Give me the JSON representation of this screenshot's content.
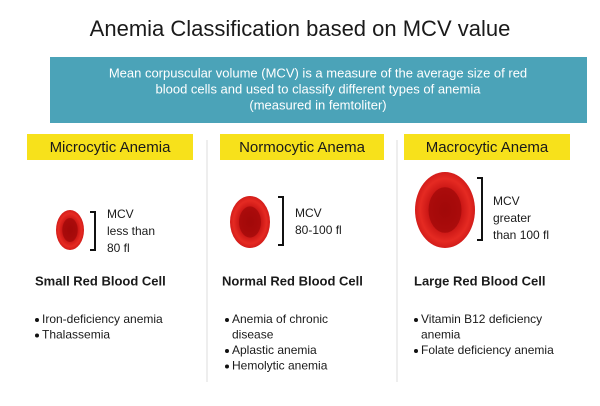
{
  "header": {
    "title": "Anemia Classification based on MCV value",
    "banner": [
      "Mean corpuscular volume (MCV) is a measure of the average size of red",
      "blood cells and used to classify different types of anemia",
      "(measured in femtoliter)"
    ]
  },
  "columns": [
    {
      "heading": "Microcytic Anemia",
      "mcv": [
        "MCV",
        "less than",
        "80 fl"
      ],
      "cell_label": "Small Red Blood Cell",
      "items": [
        {
          "lines": [
            "Iron-deficiency anemia"
          ]
        },
        {
          "lines": [
            "Thalassemia"
          ]
        }
      ]
    },
    {
      "heading": "Normocytic Anema",
      "mcv": [
        "MCV",
        "80-100 fl"
      ],
      "cell_label": "Normal Red Blood Cell",
      "items": [
        {
          "lines": [
            "Anemia of chronic",
            "disease"
          ]
        },
        {
          "lines": [
            "Aplastic anemia"
          ]
        },
        {
          "lines": [
            "Hemolytic anemia"
          ]
        }
      ]
    },
    {
      "heading": "Macrocytic Anema",
      "mcv": [
        "MCV",
        "greater",
        "than 100 fl"
      ],
      "cell_label": "Large Red Blood Cell",
      "items": [
        {
          "lines": [
            "Vitamin B12 deficiency",
            "anemia"
          ]
        },
        {
          "lines": [
            "Folate deficiency anemia"
          ]
        }
      ]
    }
  ]
}
